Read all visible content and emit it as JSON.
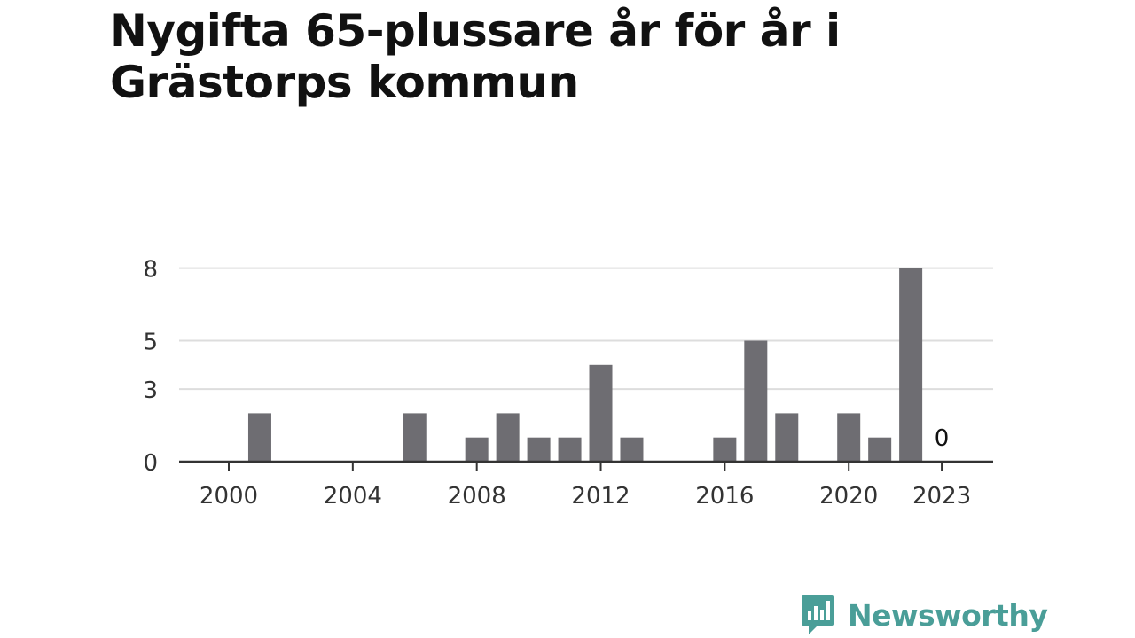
{
  "chart_data": {
    "type": "bar",
    "title": "Nygifta 65-plussare år för år i Grästorps kommun",
    "xlabel": "",
    "ylabel": "",
    "x": [
      2000,
      2001,
      2002,
      2003,
      2004,
      2005,
      2006,
      2007,
      2008,
      2009,
      2010,
      2011,
      2012,
      2013,
      2014,
      2015,
      2016,
      2017,
      2018,
      2019,
      2020,
      2021,
      2022,
      2023
    ],
    "values": [
      0,
      2,
      0,
      0,
      0,
      0,
      2,
      0,
      1,
      2,
      1,
      1,
      4,
      1,
      0,
      0,
      1,
      5,
      2,
      0,
      2,
      1,
      8,
      0
    ],
    "ylim": [
      0,
      9
    ],
    "yticks": [
      0,
      3,
      5,
      8
    ],
    "xticks": [
      "2000",
      "2004",
      "2008",
      "2012",
      "2016",
      "2020",
      "2023"
    ],
    "annotations": [
      {
        "x": 2023,
        "text": "0"
      }
    ],
    "bar_color": "#6e6d72",
    "grid": true
  },
  "logo": {
    "text": "Newsworthy",
    "color": "#4a9e98",
    "icon": "newsworthy-logo-icon"
  }
}
